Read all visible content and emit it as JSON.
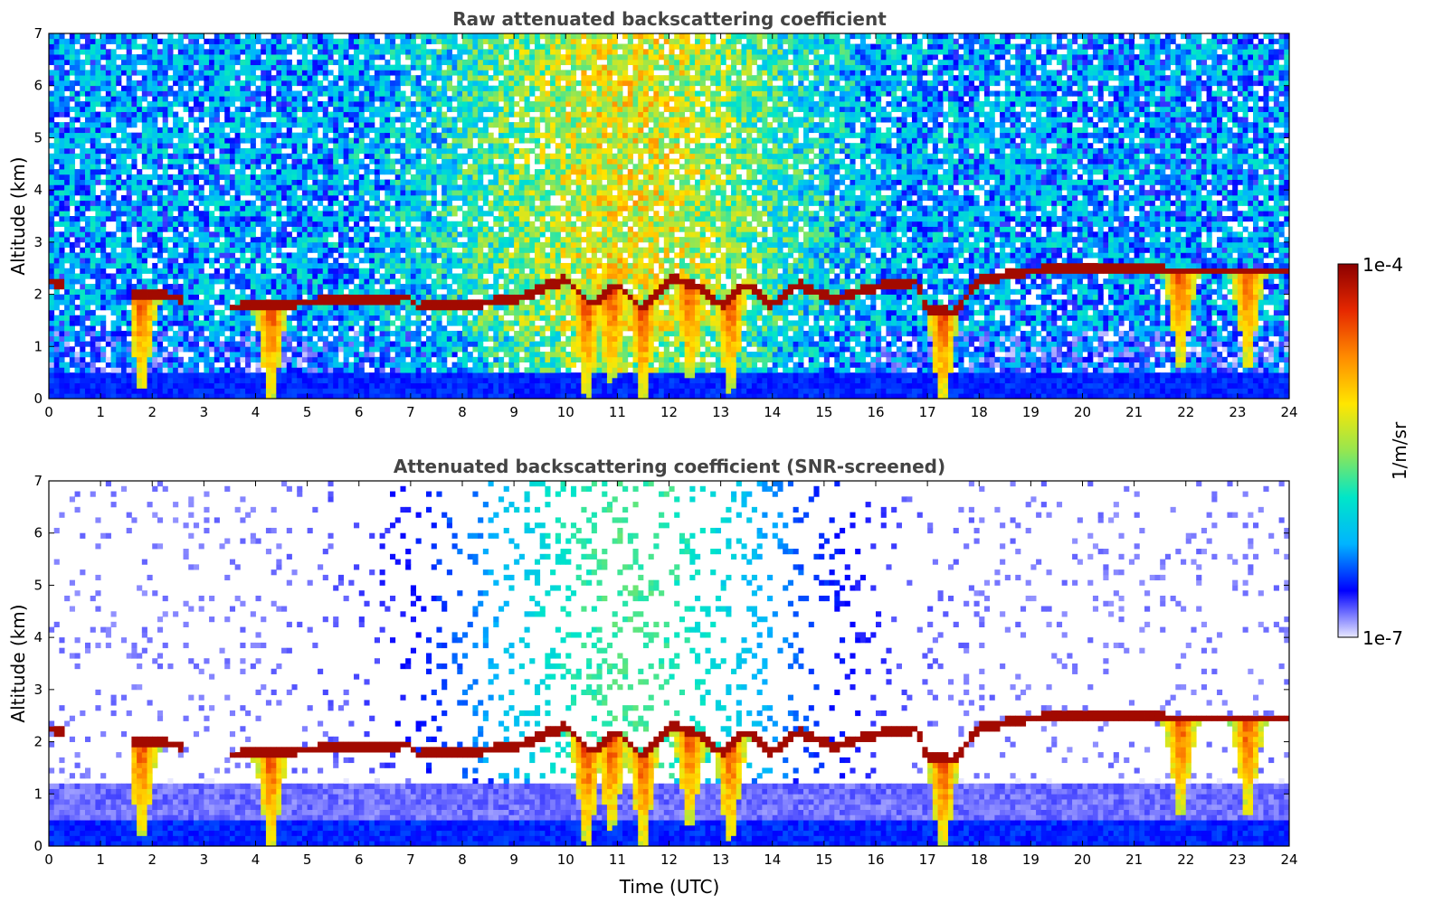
{
  "chart_data": [
    {
      "type": "heatmap",
      "title": "Raw attenuated backscattering coefficient",
      "xlabel": "",
      "ylabel": "Altitude (km)",
      "x_ticks": [
        "0",
        "1",
        "2",
        "3",
        "4",
        "5",
        "6",
        "7",
        "8",
        "9",
        "10",
        "11",
        "12",
        "13",
        "14",
        "15",
        "16",
        "17",
        "18",
        "19",
        "20",
        "21",
        "22",
        "23",
        "24"
      ],
      "y_ticks": [
        "0",
        "1",
        "2",
        "3",
        "4",
        "5",
        "6",
        "7"
      ],
      "xlim": [
        0,
        24
      ],
      "ylim": [
        0,
        7
      ],
      "screened": false,
      "cloud_base_km": [
        {
          "t": 0.0,
          "h": 2.25
        },
        {
          "t": 1.7,
          "h": 2.0
        },
        {
          "t": 2.5,
          "h": 1.95
        },
        {
          "t": 3.5,
          "h": 1.75
        },
        {
          "t": 5.0,
          "h": 1.85
        },
        {
          "t": 7.0,
          "h": 1.95
        },
        {
          "t": 7.1,
          "h": 1.75
        },
        {
          "t": 8.5,
          "h": 1.85
        },
        {
          "t": 9.0,
          "h": 1.9
        },
        {
          "t": 9.5,
          "h": 2.1
        },
        {
          "t": 10.0,
          "h": 2.3
        },
        {
          "t": 10.5,
          "h": 1.8
        },
        {
          "t": 11.0,
          "h": 2.2
        },
        {
          "t": 11.5,
          "h": 1.7
        },
        {
          "t": 12.0,
          "h": 2.3
        },
        {
          "t": 12.5,
          "h": 2.2
        },
        {
          "t": 13.0,
          "h": 1.8
        },
        {
          "t": 13.5,
          "h": 2.2
        },
        {
          "t": 14.0,
          "h": 1.8
        },
        {
          "t": 14.5,
          "h": 2.2
        },
        {
          "t": 15.2,
          "h": 1.9
        },
        {
          "t": 16.0,
          "h": 2.15
        },
        {
          "t": 16.8,
          "h": 2.25
        },
        {
          "t": 17.0,
          "h": 1.7
        },
        {
          "t": 17.5,
          "h": 1.65
        },
        {
          "t": 18.0,
          "h": 2.25
        },
        {
          "t": 19.0,
          "h": 2.45
        },
        {
          "t": 20.0,
          "h": 2.5
        },
        {
          "t": 22.0,
          "h": 2.45
        },
        {
          "t": 24.0,
          "h": 2.45
        }
      ],
      "precipitation_fallstreaks_utc": [
        1.8,
        4.3,
        10.4,
        10.9,
        11.5,
        12.4,
        13.2,
        17.3,
        21.9,
        23.2
      ]
    },
    {
      "type": "heatmap",
      "title": "Attenuated backscattering coefficient (SNR-screened)",
      "xlabel": "Time (UTC)",
      "ylabel": "Altitude (km)",
      "x_ticks": [
        "0",
        "1",
        "2",
        "3",
        "4",
        "5",
        "6",
        "7",
        "8",
        "9",
        "10",
        "11",
        "12",
        "13",
        "14",
        "15",
        "16",
        "17",
        "18",
        "19",
        "20",
        "21",
        "22",
        "23",
        "24"
      ],
      "y_ticks": [
        "0",
        "1",
        "2",
        "3",
        "4",
        "5",
        "6",
        "7"
      ],
      "xlim": [
        0,
        24
      ],
      "ylim": [
        0,
        7
      ],
      "screened": true
    }
  ],
  "colorbar": {
    "label": "1/m/sr",
    "max_label": "1e-4",
    "min_label": "1e-7",
    "scale": "log",
    "colormap": [
      "#e8e8ff",
      "#0000ff",
      "#00b4ff",
      "#00e6c8",
      "#96e650",
      "#ffe600",
      "#ff8c00",
      "#e62800",
      "#8c0000"
    ]
  },
  "colors": {
    "cloud_top_edge": "#000000",
    "cloud_core": "#8c0000",
    "background_blue": "#5aa0e6",
    "surface_blue": "#0000ff"
  }
}
